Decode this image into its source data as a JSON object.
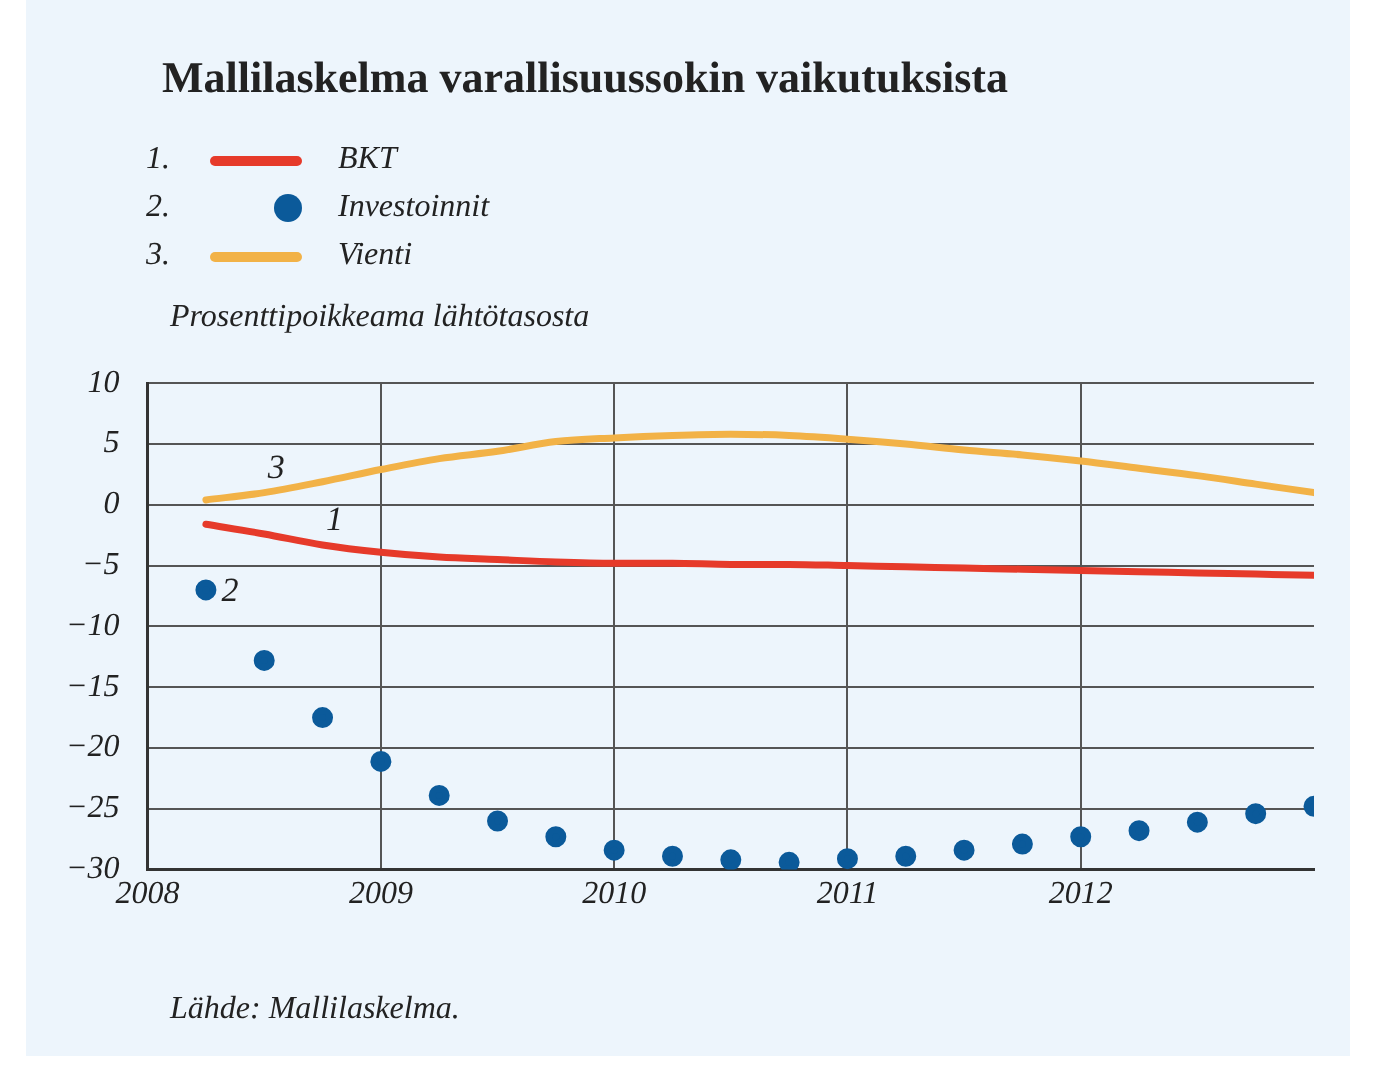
{
  "chart_data": {
    "type": "line",
    "title": "Mallilaskelma varallisuussokin vaikutuksista",
    "ylabel": "Prosenttipoikkeama lähtötasosta",
    "x": [
      2008.25,
      2008.5,
      2008.75,
      2009,
      2009.25,
      2009.5,
      2009.75,
      2010,
      2010.25,
      2010.5,
      2010.75,
      2011,
      2011.25,
      2011.5,
      2011.75,
      2012,
      2012.25,
      2012.5,
      2012.75,
      2013
    ],
    "series": [
      {
        "name": "BKT",
        "color": "#e63a2a",
        "values": [
          -1.6,
          -2.4,
          -3.3,
          -3.9,
          -4.3,
          -4.5,
          -4.7,
          -4.8,
          -4.8,
          -4.9,
          -4.9,
          -5.0,
          -5.1,
          -5.2,
          -5.3,
          -5.4,
          -5.5,
          -5.6,
          -5.7,
          -5.8
        ]
      },
      {
        "name": "Investoinnit",
        "type": "scatter",
        "marker": "circle",
        "color": "#0b5a9a",
        "values": [
          -7.0,
          -12.8,
          -17.5,
          -21.1,
          -23.9,
          -26.0,
          -27.3,
          -28.4,
          -28.9,
          -29.2,
          -29.4,
          -29.1,
          -28.9,
          -28.4,
          -27.9,
          -27.3,
          -26.8,
          -26.1,
          -25.4,
          -24.8
        ]
      },
      {
        "name": "Vienti",
        "color": "#f2b247",
        "values": [
          0.4,
          1.0,
          1.9,
          2.9,
          3.8,
          4.4,
          5.2,
          5.5,
          5.7,
          5.8,
          5.7,
          5.4,
          5.0,
          4.5,
          4.1,
          3.6,
          3.0,
          2.4,
          1.7,
          1.0
        ]
      }
    ],
    "xlim": [
      2008,
      2013
    ],
    "xticks": [
      2008,
      2009,
      2010,
      2011,
      2012
    ],
    "ylim": [
      -30,
      10
    ],
    "yticks": [
      -30,
      -25,
      -20,
      -15,
      -10,
      -5,
      0,
      5,
      10
    ],
    "grid": true,
    "legend": "top left",
    "line_style": "solid",
    "annotations": [
      "1.",
      "2.",
      "3.",
      {
        "text": "1",
        "x": 2008.75,
        "y": -3.3
      },
      {
        "text": "2",
        "x": 2008.25,
        "y": -7.0
      },
      {
        "text": "3",
        "x": 2008.5,
        "y": 1.0
      },
      "Lähde: Mallilaskelma."
    ]
  }
}
